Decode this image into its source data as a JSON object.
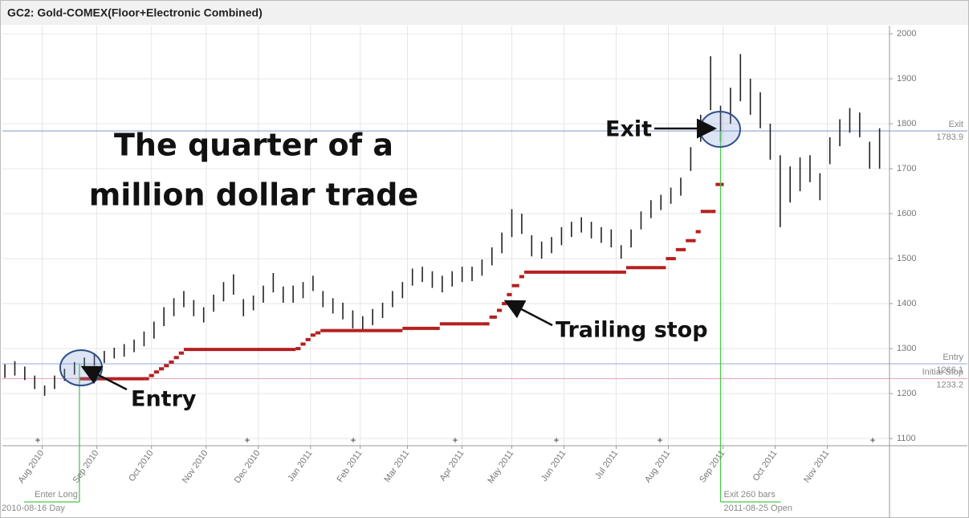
{
  "chart_data": {
    "type": "ohlc",
    "title": "GC2: Gold-COMEX(Floor+Electronic Combined)",
    "headline": [
      "The quarter of a",
      "million dollar trade"
    ],
    "annotations": {
      "entry": "Entry",
      "exit": "Exit",
      "stop": "Trailing stop"
    },
    "color": "#222222",
    "xlim": [
      -1,
      356
    ],
    "ylim": [
      1084,
      2018
    ],
    "yticks": [
      1100,
      1200,
      1300,
      1400,
      1500,
      1600,
      1700,
      1800,
      1900,
      2000
    ],
    "xticks": [
      {
        "value": 15,
        "label": "Aug 2010"
      },
      {
        "value": 37,
        "label": "Sep 2010"
      },
      {
        "value": 59,
        "label": "Oct 2010"
      },
      {
        "value": 81,
        "label": "Nov 2010"
      },
      {
        "value": 102,
        "label": "Dec 2010"
      },
      {
        "value": 123,
        "label": "Jan 2011"
      },
      {
        "value": 143,
        "label": "Feb 2011"
      },
      {
        "value": 162,
        "label": "Mar 2011"
      },
      {
        "value": 184,
        "label": "Apr 2011"
      },
      {
        "value": 204,
        "label": "May 2011"
      },
      {
        "value": 225,
        "label": "Jun 2011"
      },
      {
        "value": 246,
        "label": "Jul 2011"
      },
      {
        "value": 267,
        "label": "Aug 2011"
      },
      {
        "value": 289,
        "label": "Sep 2011"
      },
      {
        "value": 310,
        "label": "Oct 2011"
      },
      {
        "value": 331,
        "label": "Nov 2011"
      }
    ],
    "grid": true,
    "x": [
      0,
      4,
      8,
      12,
      16,
      20,
      24,
      28,
      32,
      36,
      40,
      44,
      48,
      52,
      56,
      60,
      64,
      68,
      72,
      76,
      80,
      84,
      88,
      92,
      96,
      100,
      104,
      108,
      112,
      116,
      120,
      124,
      128,
      132,
      136,
      140,
      144,
      148,
      152,
      156,
      160,
      164,
      168,
      172,
      176,
      180,
      184,
      188,
      192,
      196,
      200,
      204,
      208,
      212,
      216,
      220,
      224,
      228,
      232,
      236,
      240,
      244,
      248,
      252,
      256,
      260,
      264,
      268,
      272,
      276,
      280,
      284,
      288,
      292,
      296,
      300,
      304,
      308,
      312,
      316,
      320,
      324,
      328,
      332,
      336,
      340,
      344,
      348,
      352
    ],
    "low": [
      1235,
      1240,
      1230,
      1210,
      1195,
      1210,
      1228,
      1242,
      1252,
      1262,
      1268,
      1278,
      1282,
      1292,
      1305,
      1322,
      1350,
      1372,
      1392,
      1372,
      1358,
      1382,
      1405,
      1420,
      1372,
      1385,
      1402,
      1425,
      1402,
      1402,
      1412,
      1428,
      1392,
      1378,
      1365,
      1345,
      1340,
      1352,
      1368,
      1392,
      1412,
      1440,
      1448,
      1435,
      1425,
      1438,
      1448,
      1450,
      1462,
      1485,
      1512,
      1548,
      1555,
      1505,
      1500,
      1512,
      1530,
      1548,
      1558,
      1545,
      1535,
      1525,
      1500,
      1525,
      1565,
      1590,
      1608,
      1622,
      1640,
      1695,
      1760,
      1830,
      1760,
      1800,
      1850,
      1820,
      1790,
      1720,
      1570,
      1625,
      1650,
      1670,
      1630,
      1710,
      1750,
      1780,
      1770,
      1700,
      1700
    ],
    "high": [
      1265,
      1272,
      1260,
      1240,
      1218,
      1240,
      1255,
      1270,
      1280,
      1290,
      1295,
      1302,
      1310,
      1320,
      1338,
      1360,
      1392,
      1412,
      1428,
      1408,
      1392,
      1420,
      1448,
      1465,
      1410,
      1418,
      1440,
      1468,
      1438,
      1440,
      1448,
      1462,
      1428,
      1412,
      1402,
      1385,
      1372,
      1388,
      1402,
      1428,
      1448,
      1478,
      1482,
      1472,
      1462,
      1472,
      1482,
      1482,
      1498,
      1525,
      1558,
      1610,
      1600,
      1552,
      1538,
      1548,
      1570,
      1582,
      1592,
      1582,
      1570,
      1565,
      1530,
      1565,
      1605,
      1630,
      1642,
      1658,
      1680,
      1748,
      1820,
      1950,
      1840,
      1880,
      1955,
      1900,
      1870,
      1800,
      1730,
      1705,
      1725,
      1730,
      1690,
      1770,
      1810,
      1835,
      1825,
      1760,
      1790
    ],
    "stop": {
      "name": "Trailing stop",
      "color": "#b52020",
      "x": [
        30,
        56,
        58,
        60,
        62,
        64,
        66,
        68,
        70,
        72,
        117,
        119,
        121,
        123,
        125,
        127,
        160,
        175,
        192,
        195,
        198,
        200,
        202,
        204,
        207,
        209,
        244,
        250,
        262,
        266,
        270,
        274,
        278,
        280,
        284,
        286,
        288
      ],
      "values": [
        1233,
        1233,
        1240,
        1248,
        1255,
        1262,
        1270,
        1280,
        1290,
        1298,
        1300,
        1310,
        1320,
        1330,
        1335,
        1340,
        1345,
        1355,
        1355,
        1370,
        1385,
        1400,
        1420,
        1440,
        1460,
        1470,
        1470,
        1480,
        1480,
        1500,
        1520,
        1540,
        1560,
        1605,
        1605,
        1665,
        1665
      ]
    },
    "levels": [
      {
        "name": "Exit",
        "value": 1783.9,
        "color": "#8fa2d2"
      },
      {
        "name": "Entry",
        "value": 1266.1,
        "color": "#a9bbe0"
      },
      {
        "name": "Initial Stop",
        "value": 1233.2,
        "color": "#e7a7bf"
      }
    ],
    "signals": [
      {
        "x": 30,
        "label": "Enter Long",
        "date": "2010-08-16 Day"
      },
      {
        "x": 288,
        "label": "Exit 260 bars",
        "date": "2011-08-25 Open"
      }
    ]
  }
}
